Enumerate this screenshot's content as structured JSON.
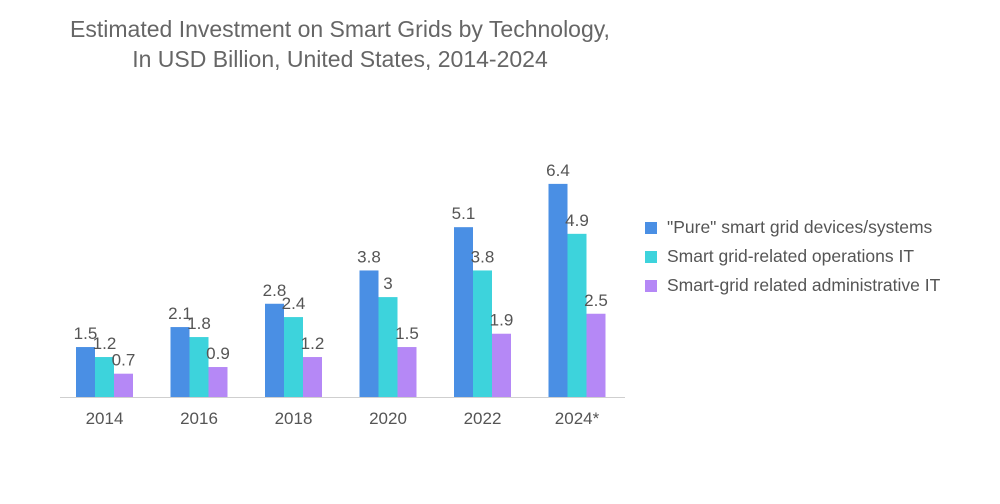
{
  "chart_data": {
    "type": "bar",
    "title_lines": [
      "Estimated Investment on Smart Grids by Technology,",
      "In USD Billion, United States, 2014-2024"
    ],
    "categories": [
      "2014",
      "2016",
      "2018",
      "2020",
      "2022",
      "2024*"
    ],
    "series": [
      {
        "name": "\"Pure\" smart grid devices/systems",
        "color": "#4a8fe4",
        "values": [
          1.5,
          2.1,
          2.8,
          3.8,
          5.1,
          6.4
        ]
      },
      {
        "name": "Smart grid-related operations IT",
        "color": "#3dd3dc",
        "values": [
          1.2,
          1.8,
          2.4,
          3,
          3.8,
          4.9
        ]
      },
      {
        "name": "Smart-grid related administrative IT",
        "color": "#b588f6",
        "values": [
          0.7,
          0.9,
          1.2,
          1.5,
          1.9,
          2.5
        ]
      }
    ],
    "value_labels": [
      [
        "1.5",
        "2.1",
        "2.8",
        "3.8",
        "5.1",
        "6.4"
      ],
      [
        "1.2",
        "1.8",
        "2.4",
        "3",
        "3.8",
        "4.9"
      ],
      [
        "0.7",
        "0.9",
        "1.2",
        "1.5",
        "1.9",
        "2.5"
      ]
    ],
    "ylim": [
      0,
      6.4
    ],
    "grid": false,
    "legend_position": "right"
  }
}
